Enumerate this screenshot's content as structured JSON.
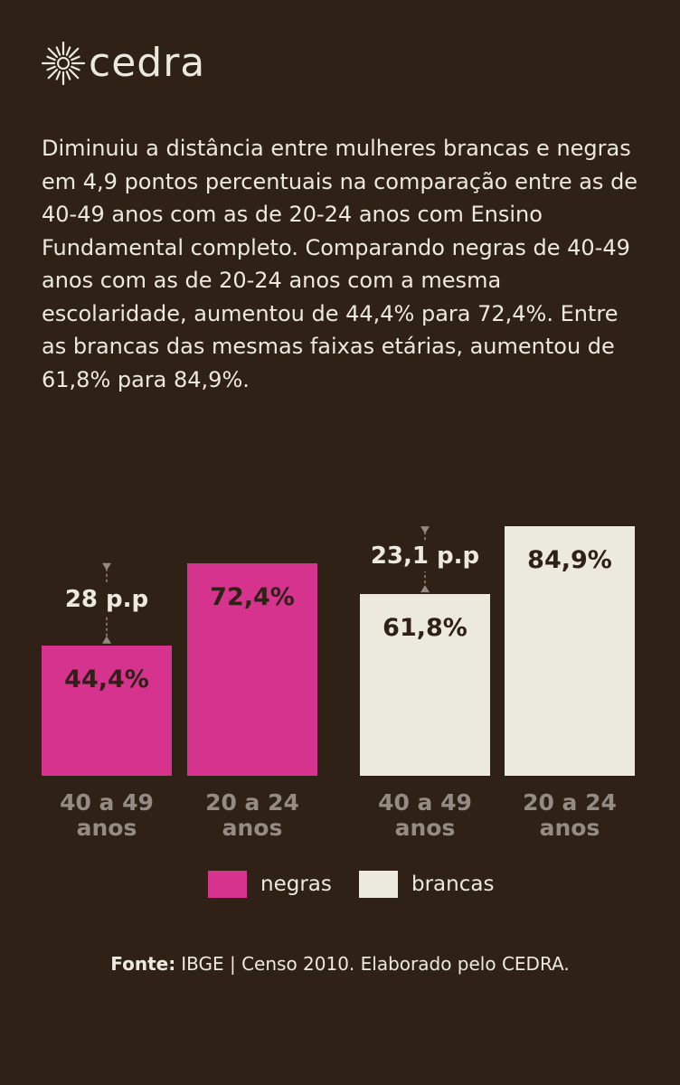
{
  "header": {
    "brand": "cedra",
    "text": "Diminuiu a distância entre mulheres brancas e negras em 4,9 pontos percentuais na comparação entre as de 40-49 anos com as de 20-24 anos com Ensino Fundamental completo. Comparando negras de 40-49 anos com as de 20-24 anos com a mesma escolaridade, aumentou de 44,4% para 72,4%. Entre as brancas das mesmas faixas etárias, aumentou de 61,8% para 84,9%."
  },
  "chart_data": {
    "type": "bar",
    "categories": [
      "40 a 49 anos",
      "20 a 24 anos"
    ],
    "series": [
      {
        "name": "negras",
        "color": "#d6338f",
        "values": [
          44.4,
          72.4
        ],
        "value_labels": [
          "44,4%",
          "72,4%"
        ]
      },
      {
        "name": "brancas",
        "color": "#ece9df",
        "values": [
          61.8,
          84.9
        ],
        "value_labels": [
          "61,8%",
          "84,9%"
        ]
      }
    ],
    "annotations": [
      "28 p.p",
      "23,1 p.p"
    ]
  },
  "footer": {
    "label": "Fonte:",
    "text": "IBGE | Censo 2010. Elaborado pelo CEDRA."
  }
}
